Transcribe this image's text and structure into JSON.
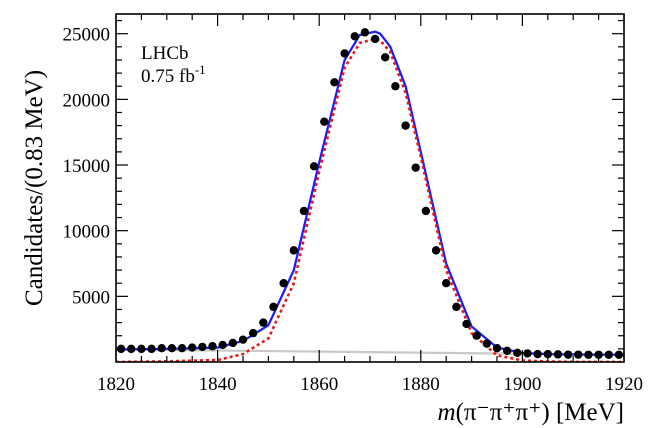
{
  "chart_data": {
    "type": "scatter",
    "xlabel_prefix": "m",
    "xlabel_suffix": "(π⁻π⁺π⁺) [MeV]",
    "ylabel": "Candidates/(0.83 MeV)",
    "xlim": [
      1820,
      1920
    ],
    "ylim": [
      0,
      26500
    ],
    "xticks": [
      1820,
      1840,
      1860,
      1880,
      1900,
      1920
    ],
    "yticks": [
      5000,
      10000,
      15000,
      20000,
      25000
    ],
    "annotations": [
      "LHCb",
      "0.75 fb",
      "-1"
    ],
    "series": [
      {
        "kind": "points",
        "x": [
          1821,
          1823,
          1825,
          1827,
          1829,
          1831,
          1833,
          1835,
          1837,
          1839,
          1841,
          1843,
          1845,
          1847,
          1849,
          1851,
          1853,
          1855,
          1857,
          1859,
          1861,
          1863,
          1865,
          1867,
          1869,
          1871,
          1873,
          1875,
          1877,
          1879,
          1881,
          1883,
          1885,
          1887,
          1889,
          1891,
          1893,
          1895,
          1897,
          1899,
          1901,
          1903,
          1905,
          1907,
          1909,
          1911,
          1913,
          1915,
          1917,
          1919
        ],
        "y": [
          1000,
          1000,
          1000,
          1000,
          1050,
          1050,
          1050,
          1100,
          1150,
          1200,
          1300,
          1450,
          1700,
          2200,
          3000,
          4200,
          6000,
          8500,
          11500,
          14900,
          18300,
          21300,
          23500,
          24800,
          25100,
          24600,
          23200,
          21000,
          18000,
          14800,
          11500,
          8500,
          6000,
          4200,
          2900,
          2000,
          1400,
          1050,
          850,
          700,
          650,
          600,
          600,
          580,
          560,
          560,
          550,
          550,
          550,
          550
        ]
      },
      {
        "kind": "line",
        "color": "#1a1aff",
        "style": "solid",
        "x": [
          1820,
          1830,
          1840,
          1845,
          1850,
          1855,
          1860,
          1865,
          1868,
          1871,
          1872,
          1874,
          1877,
          1880,
          1885,
          1890,
          1895,
          1900,
          1905,
          1910,
          1920
        ],
        "y": [
          950,
          1000,
          1100,
          1600,
          2800,
          7000,
          15200,
          23000,
          24900,
          25150,
          25000,
          24000,
          21000,
          16000,
          7500,
          2700,
          1100,
          700,
          600,
          570,
          550
        ]
      },
      {
        "kind": "line",
        "color": "#e6191a",
        "style": "dotted",
        "x": [
          1820,
          1830,
          1840,
          1845,
          1850,
          1855,
          1860,
          1865,
          1868,
          1871,
          1872,
          1874,
          1877,
          1880,
          1885,
          1890,
          1895,
          1900,
          1905,
          1910,
          1920
        ],
        "y": [
          0,
          50,
          150,
          600,
          1800,
          6000,
          14500,
          22400,
          24300,
          24600,
          24500,
          23600,
          20500,
          15600,
          7000,
          2200,
          500,
          120,
          40,
          10,
          0
        ]
      },
      {
        "kind": "line",
        "color": "#c8c8c8",
        "style": "solid",
        "x": [
          1820,
          1920
        ],
        "y": [
          950,
          550
        ]
      }
    ]
  }
}
